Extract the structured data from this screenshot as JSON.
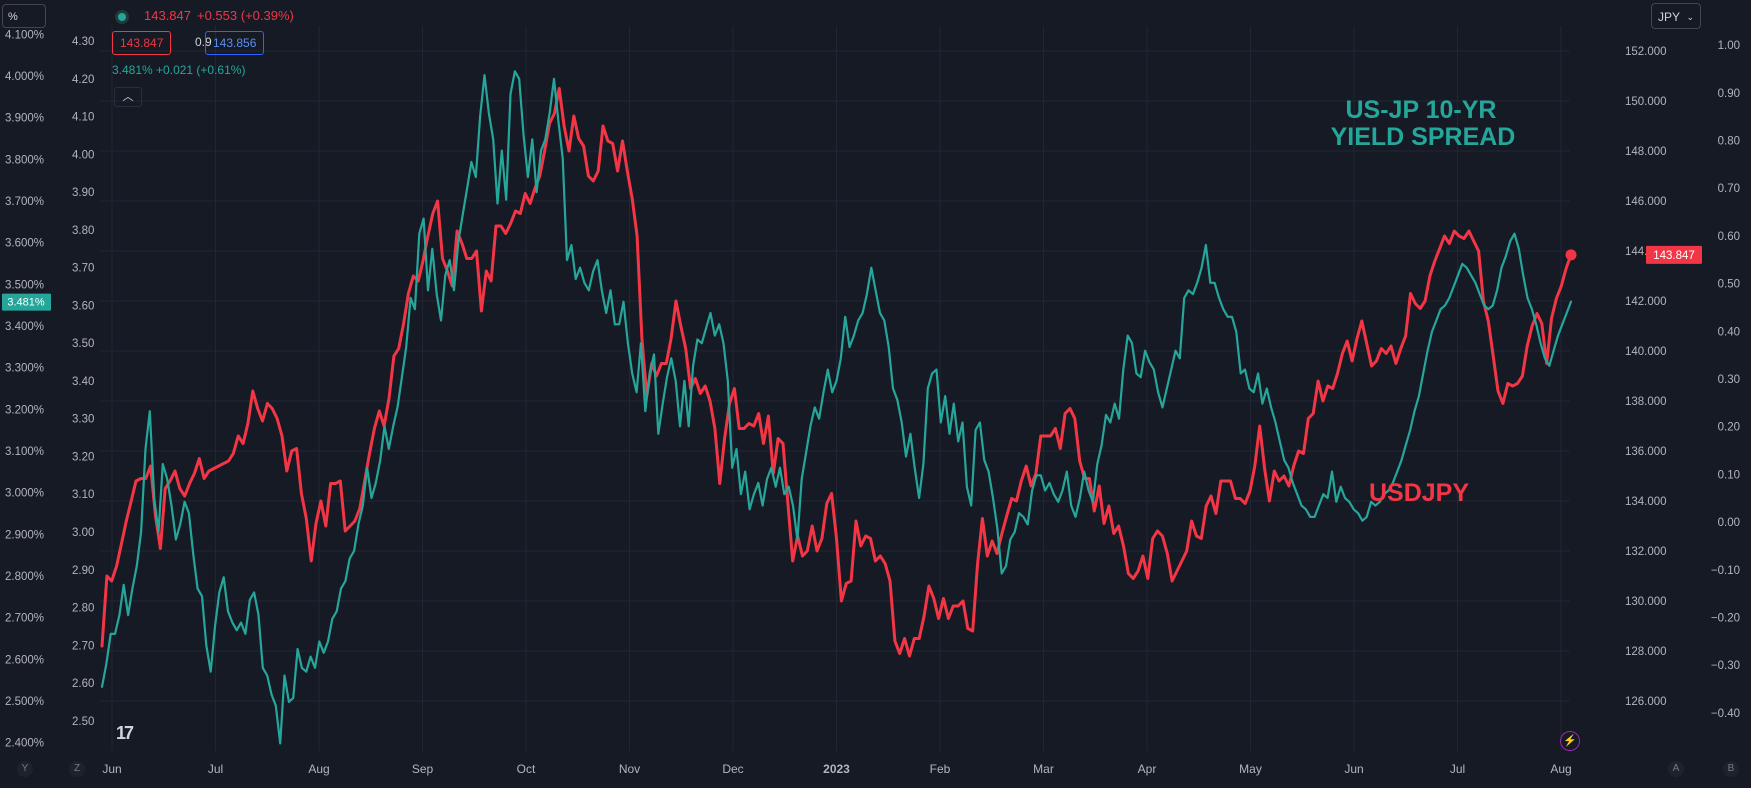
{
  "toolbar": {
    "unit_label": "%",
    "currency_label": "JPY",
    "currency_chevron": "⌄"
  },
  "legend": {
    "symbol_icon": "status-dot-icon",
    "price": "143.847",
    "change": "+0.553 (+0.39%)",
    "bid": "143.847",
    "spread": "0.9",
    "ask": "143.856",
    "yield_value": "3.481%",
    "yield_change": "+0.021 (+0.61%)",
    "collapse_icon": "chevron-up-icon",
    "collapse_glyph": "︿"
  },
  "footer": {
    "left_letter_1": "Y",
    "left_letter_2": "Z",
    "right_letter_1": "A",
    "right_letter_2": "B",
    "logo_text": "17",
    "flash_glyph": "⚡"
  },
  "chart_data": {
    "type": "line",
    "annotations": [
      {
        "text": "US-JP 10-YR",
        "color": "#26a69a"
      },
      {
        "text": "YIELD SPREAD",
        "color": "#26a69a"
      },
      {
        "text": "USDJPY",
        "color": "#f23645"
      }
    ],
    "x_ticks": [
      "Jun",
      "Jul",
      "Aug",
      "Sep",
      "Oct",
      "Nov",
      "Dec",
      "2023",
      "Feb",
      "Mar",
      "Apr",
      "May",
      "Jun",
      "Jul",
      "Aug"
    ],
    "axes": {
      "left_outer": {
        "unit": "%",
        "range": [
          2.38,
          4.12
        ],
        "ticks": [
          "2.400%",
          "2.500%",
          "2.600%",
          "2.700%",
          "2.800%",
          "2.900%",
          "3.000%",
          "3.100%",
          "3.200%",
          "3.300%",
          "3.400%",
          "3.500%",
          "3.600%",
          "3.700%",
          "3.800%",
          "3.900%",
          "4.000%",
          "4.100%"
        ],
        "tick_values": [
          2.4,
          2.5,
          2.6,
          2.7,
          2.8,
          2.9,
          3.0,
          3.1,
          3.2,
          3.3,
          3.4,
          3.5,
          3.6,
          3.7,
          3.8,
          3.9,
          4.0,
          4.1
        ],
        "last_value_badge": "3.481%",
        "badge_color": "#26a69a"
      },
      "left_inner": {
        "range": [
          2.42,
          4.34
        ],
        "ticks": [
          "2.50",
          "2.60",
          "2.70",
          "2.80",
          "2.90",
          "3.00",
          "3.10",
          "3.20",
          "3.30",
          "3.40",
          "3.50",
          "3.60",
          "3.70",
          "3.80",
          "3.90",
          "4.00",
          "4.10",
          "4.20",
          "4.30"
        ],
        "tick_values": [
          2.5,
          2.6,
          2.7,
          2.8,
          2.9,
          3.0,
          3.1,
          3.2,
          3.3,
          3.4,
          3.5,
          3.6,
          3.7,
          3.8,
          3.9,
          4.0,
          4.1,
          4.2,
          4.3
        ]
      },
      "right_inner": {
        "unit": "JPY",
        "range": [
          124.0,
          153.0
        ],
        "ticks": [
          "126.000",
          "128.000",
          "130.000",
          "132.000",
          "134.000",
          "136.000",
          "138.000",
          "140.000",
          "142.000",
          "144.000",
          "146.000",
          "148.000",
          "150.000",
          "152.000"
        ],
        "tick_values": [
          126,
          128,
          130,
          132,
          134,
          136,
          138,
          140,
          142,
          144,
          146,
          148,
          150,
          152
        ],
        "last_value_badge": "143.847",
        "badge_color": "#f23645"
      },
      "right_outer": {
        "range": [
          -0.48,
          1.04
        ],
        "ticks": [
          "−0.40",
          "−0.30",
          "−0.20",
          "−0.10",
          "0.00",
          "0.10",
          "0.20",
          "0.30",
          "0.40",
          "0.50",
          "0.60",
          "0.70",
          "0.80",
          "0.90",
          "1.00"
        ],
        "tick_values": [
          -0.4,
          -0.3,
          -0.2,
          -0.1,
          0.0,
          0.1,
          0.2,
          0.3,
          0.4,
          0.5,
          0.6,
          0.7,
          0.8,
          0.9,
          1.0
        ]
      }
    },
    "grid": true,
    "series": [
      {
        "color": "#f23645",
        "axis": "right_inner",
        "last_point_marker": true,
        "values": [
          128.2,
          131.0,
          130.8,
          131.4,
          132.3,
          133.2,
          134.0,
          134.8,
          134.9,
          134.9,
          135.4,
          133.4,
          132.1,
          134.5,
          134.8,
          135.2,
          134.5,
          134.2,
          134.7,
          135.1,
          135.7,
          134.9,
          135.2,
          135.3,
          135.4,
          135.5,
          135.6,
          135.9,
          136.6,
          136.3,
          137.1,
          138.4,
          137.7,
          137.2,
          137.9,
          137.7,
          137.3,
          136.6,
          135.2,
          136.0,
          136.1,
          134.3,
          133.3,
          131.6,
          133.1,
          134.0,
          133.0,
          134.7,
          134.7,
          134.8,
          132.8,
          133.0,
          133.2,
          133.7,
          134.8,
          135.9,
          136.9,
          137.6,
          137.0,
          138.1,
          139.8,
          140.1,
          141.1,
          142.3,
          143.0,
          142.8,
          143.6,
          144.6,
          145.5,
          146.0,
          143.7,
          143.2,
          142.6,
          144.8,
          144.3,
          143.7,
          143.7,
          144.0,
          141.6,
          143.2,
          142.8,
          145.0,
          145.0,
          144.7,
          145.1,
          145.6,
          145.5,
          146.3,
          145.9,
          146.5,
          147.0,
          148.0,
          149.1,
          149.5,
          150.5,
          149.0,
          148.0,
          149.4,
          148.5,
          148.2,
          147.0,
          146.8,
          147.2,
          149.0,
          148.4,
          148.3,
          147.2,
          148.4,
          147.2,
          146.1,
          144.6,
          140.5,
          138.2,
          139.5,
          139.0,
          139.5,
          139.5,
          140.5,
          142.0,
          141.0,
          140.1,
          138.5,
          138.9,
          138.3,
          138.6,
          138.0,
          136.9,
          134.7,
          136.5,
          137.9,
          138.5,
          136.9,
          136.9,
          137.1,
          137.0,
          137.5,
          136.3,
          137.4,
          135.1,
          136.5,
          136.3,
          133.9,
          131.6,
          132.6,
          131.8,
          132.0,
          133.0,
          132.0,
          132.5,
          133.9,
          134.3,
          132.5,
          130.0,
          130.7,
          130.8,
          133.2,
          132.2,
          132.6,
          132.5,
          131.6,
          131.8,
          131.5,
          130.8,
          128.4,
          127.9,
          128.5,
          127.8,
          128.5,
          128.5,
          129.4,
          130.6,
          130.1,
          129.3,
          130.1,
          129.3,
          129.8,
          129.8,
          130.0,
          128.9,
          128.8,
          131.5,
          133.3,
          131.8,
          132.4,
          131.9,
          132.7,
          133.4,
          134.1,
          134.0,
          134.8,
          135.4,
          134.6,
          135.1,
          136.6,
          136.6,
          136.6,
          136.9,
          136.1,
          137.5,
          137.7,
          137.3,
          135.6,
          134.9,
          134.9,
          133.6,
          134.6,
          133.1,
          133.8,
          132.7,
          133.0,
          132.2,
          131.1,
          130.9,
          131.2,
          131.8,
          130.9,
          132.5,
          132.8,
          132.6,
          131.9,
          130.8,
          131.2,
          131.6,
          132.0,
          133.2,
          132.6,
          132.5,
          133.8,
          134.2,
          133.5,
          134.8,
          134.8,
          134.8,
          134.1,
          134.1,
          133.9,
          134.4,
          135.4,
          137.0,
          135.3,
          134.0,
          135.2,
          134.8,
          135.0,
          134.6,
          135.4,
          136.0,
          135.9,
          137.3,
          137.5,
          138.8,
          138.0,
          138.6,
          138.5,
          139.1,
          139.9,
          140.4,
          139.6,
          140.5,
          141.2,
          140.3,
          139.4,
          139.6,
          140.1,
          139.9,
          140.2,
          139.5,
          140.1,
          140.6,
          142.3,
          141.9,
          141.7,
          142.0,
          143.0,
          143.6,
          144.1,
          144.6,
          144.3,
          144.8,
          144.6,
          144.5,
          144.8,
          144.4,
          144.0,
          142.0,
          141.2,
          139.8,
          138.4,
          137.9,
          138.7,
          138.6,
          138.7,
          139.0,
          140.2,
          141.0,
          141.5,
          141.1,
          139.5,
          141.3,
          142.1,
          142.6,
          143.3,
          143.847
        ]
      },
      {
        "color": "#26a69a",
        "axis": "left_inner",
        "values": [
          2.59,
          2.65,
          2.73,
          2.73,
          2.78,
          2.86,
          2.78,
          2.85,
          2.91,
          3.0,
          3.22,
          3.32,
          3.09,
          3.0,
          3.18,
          3.14,
          3.07,
          2.98,
          3.02,
          3.08,
          3.05,
          2.94,
          2.85,
          2.83,
          2.7,
          2.63,
          2.75,
          2.84,
          2.88,
          2.79,
          2.76,
          2.74,
          2.76,
          2.73,
          2.82,
          2.84,
          2.78,
          2.64,
          2.62,
          2.57,
          2.54,
          2.44,
          2.62,
          2.55,
          2.56,
          2.69,
          2.64,
          2.63,
          2.67,
          2.64,
          2.71,
          2.68,
          2.71,
          2.77,
          2.79,
          2.85,
          2.87,
          2.93,
          2.95,
          3.02,
          3.07,
          3.17,
          3.09,
          3.13,
          3.19,
          3.28,
          3.22,
          3.28,
          3.33,
          3.41,
          3.49,
          3.62,
          3.59,
          3.79,
          3.83,
          3.64,
          3.75,
          3.63,
          3.56,
          3.68,
          3.72,
          3.64,
          3.77,
          3.84,
          3.91,
          3.98,
          3.94,
          4.1,
          4.21,
          4.11,
          4.04,
          3.87,
          4.01,
          3.88,
          4.16,
          4.22,
          4.2,
          4.05,
          3.94,
          4.04,
          3.9,
          4.01,
          4.04,
          4.11,
          4.2,
          4.09,
          3.99,
          3.72,
          3.76,
          3.67,
          3.7,
          3.66,
          3.64,
          3.69,
          3.72,
          3.64,
          3.58,
          3.64,
          3.55,
          3.55,
          3.61,
          3.5,
          3.42,
          3.37,
          3.5,
          3.32,
          3.42,
          3.47,
          3.26,
          3.34,
          3.41,
          3.46,
          3.4,
          3.28,
          3.4,
          3.28,
          3.44,
          3.51,
          3.5,
          3.54,
          3.58,
          3.52,
          3.55,
          3.5,
          3.4,
          3.17,
          3.22,
          3.1,
          3.16,
          3.06,
          3.1,
          3.13,
          3.07,
          3.14,
          3.17,
          3.12,
          3.17,
          3.1,
          3.12,
          3.07,
          2.98,
          3.14,
          3.21,
          3.28,
          3.33,
          3.3,
          3.37,
          3.43,
          3.37,
          3.4,
          3.46,
          3.57,
          3.49,
          3.52,
          3.56,
          3.58,
          3.63,
          3.7,
          3.64,
          3.58,
          3.56,
          3.49,
          3.38,
          3.35,
          3.29,
          3.2,
          3.26,
          3.17,
          3.09,
          3.18,
          3.38,
          3.42,
          3.43,
          3.29,
          3.36,
          3.26,
          3.34,
          3.24,
          3.29,
          3.12,
          3.07,
          3.27,
          3.29,
          3.19,
          3.16,
          3.09,
          3.01,
          2.89,
          2.91,
          2.98,
          3.0,
          3.05,
          3.04,
          3.02,
          3.11,
          3.15,
          3.15,
          3.11,
          3.13,
          3.1,
          3.08,
          3.11,
          3.16,
          3.07,
          3.04,
          3.09,
          3.16,
          3.11,
          3.08,
          3.18,
          3.23,
          3.31,
          3.29,
          3.34,
          3.3,
          3.43,
          3.52,
          3.5,
          3.42,
          3.41,
          3.48,
          3.45,
          3.43,
          3.37,
          3.33,
          3.38,
          3.43,
          3.48,
          3.46,
          3.62,
          3.64,
          3.63,
          3.66,
          3.7,
          3.76,
          3.66,
          3.66,
          3.62,
          3.59,
          3.57,
          3.57,
          3.53,
          3.42,
          3.43,
          3.38,
          3.37,
          3.42,
          3.34,
          3.38,
          3.33,
          3.29,
          3.24,
          3.19,
          3.17,
          3.13,
          3.1,
          3.07,
          3.06,
          3.04,
          3.04,
          3.07,
          3.1,
          3.09,
          3.16,
          3.08,
          3.12,
          3.09,
          3.08,
          3.06,
          3.05,
          3.03,
          3.04,
          3.08,
          3.07,
          3.08,
          3.1,
          3.11,
          3.13,
          3.16,
          3.19,
          3.23,
          3.27,
          3.32,
          3.36,
          3.42,
          3.48,
          3.53,
          3.56,
          3.59,
          3.6,
          3.62,
          3.65,
          3.68,
          3.71,
          3.7,
          3.68,
          3.66,
          3.63,
          3.6,
          3.59,
          3.6,
          3.64,
          3.7,
          3.73,
          3.77,
          3.79,
          3.75,
          3.68,
          3.62,
          3.59,
          3.55,
          3.5,
          3.46,
          3.44,
          3.48,
          3.52,
          3.55,
          3.58,
          3.61
        ]
      }
    ]
  }
}
